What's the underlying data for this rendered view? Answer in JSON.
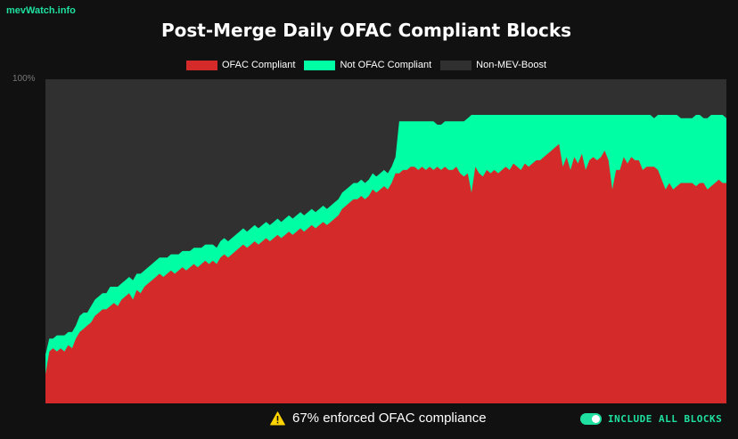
{
  "brand": "mevWatch.info",
  "status_text": "67% enforced OFAC compliance",
  "toggle_label": "INCLUDE ALL BLOCKS",
  "toggle_on": true,
  "chart_data": {
    "type": "area",
    "stacked": true,
    "title": "Post-Merge Daily OFAC Compliant Blocks",
    "ylim": [
      0,
      100
    ],
    "y_ticks": [
      "100%"
    ],
    "legend_position": "top-center",
    "grid": false,
    "colors": {
      "ofac": "#d42a2a",
      "not_ofac": "#00ffa5",
      "non_mev": "#303030"
    },
    "series": [
      {
        "name": "OFAC Compliant",
        "values": [
          9,
          16,
          17,
          16,
          17,
          16,
          18,
          17,
          20,
          22,
          23,
          24,
          25,
          27,
          28,
          29,
          29,
          30,
          31,
          30,
          32,
          33,
          34,
          32,
          35,
          34,
          36,
          37,
          38,
          39,
          40,
          39,
          40,
          41,
          40,
          41,
          42,
          41,
          42,
          43,
          42,
          43,
          44,
          43,
          44,
          43,
          45,
          46,
          45,
          46,
          47,
          48,
          49,
          48,
          49,
          50,
          49,
          50,
          51,
          50,
          51,
          52,
          51,
          52,
          53,
          52,
          53,
          54,
          53,
          54,
          55,
          54,
          55,
          56,
          55,
          56,
          57,
          58,
          60,
          61,
          62,
          63,
          63,
          64,
          63,
          64,
          66,
          65,
          66,
          67,
          66,
          68,
          71,
          71,
          72,
          72,
          73,
          73,
          72,
          73,
          72,
          73,
          72,
          73,
          72,
          73,
          72,
          72,
          73,
          71,
          70,
          71,
          65,
          73,
          71,
          70,
          72,
          71,
          72,
          71,
          72,
          73,
          72,
          74,
          73,
          72,
          74,
          73,
          74,
          75,
          75,
          76,
          77,
          78,
          79,
          80,
          73,
          76,
          72,
          76,
          74,
          77,
          72,
          75,
          76,
          75,
          76,
          78,
          75,
          66,
          72,
          72,
          76,
          74,
          76,
          75,
          75,
          72,
          73,
          73,
          73,
          72,
          69,
          66,
          68,
          66,
          67,
          68,
          68,
          68,
          68,
          67,
          68,
          68,
          66,
          67,
          68,
          69,
          68,
          68
        ]
      },
      {
        "name": "Not OFAC Compliant",
        "values": [
          6,
          4,
          3,
          5,
          4,
          5,
          4,
          5,
          4,
          5,
          5,
          4,
          5,
          5,
          5,
          5,
          5,
          6,
          5,
          6,
          5,
          5,
          5,
          6,
          5,
          6,
          5,
          5,
          5,
          5,
          5,
          6,
          5,
          5,
          6,
          5,
          5,
          6,
          5,
          5,
          6,
          5,
          5,
          6,
          5,
          5,
          5,
          5,
          5,
          5,
          5,
          5,
          5,
          5,
          5,
          5,
          5,
          5,
          5,
          5,
          5,
          5,
          5,
          5,
          5,
          5,
          5,
          5,
          5,
          5,
          5,
          5,
          5,
          5,
          5,
          5,
          5,
          5,
          5,
          5,
          5,
          5,
          5,
          5,
          5,
          5,
          5,
          5,
          5,
          5,
          5,
          5,
          5,
          16,
          15,
          15,
          14,
          14,
          15,
          14,
          15,
          14,
          15,
          13,
          14,
          14,
          15,
          15,
          14,
          16,
          17,
          17,
          24,
          16,
          18,
          19,
          17,
          18,
          17,
          18,
          17,
          16,
          17,
          15,
          16,
          17,
          15,
          16,
          15,
          14,
          14,
          13,
          12,
          11,
          10,
          9,
          16,
          13,
          17,
          13,
          15,
          12,
          17,
          14,
          13,
          14,
          13,
          11,
          14,
          23,
          17,
          17,
          13,
          15,
          13,
          14,
          14,
          17,
          16,
          16,
          15,
          17,
          20,
          23,
          21,
          23,
          22,
          20,
          20,
          20,
          20,
          22,
          21,
          20,
          22,
          22,
          21,
          20,
          21,
          20
        ]
      },
      {
        "name": "Non-MEV-Boost",
        "values": []
      }
    ]
  }
}
